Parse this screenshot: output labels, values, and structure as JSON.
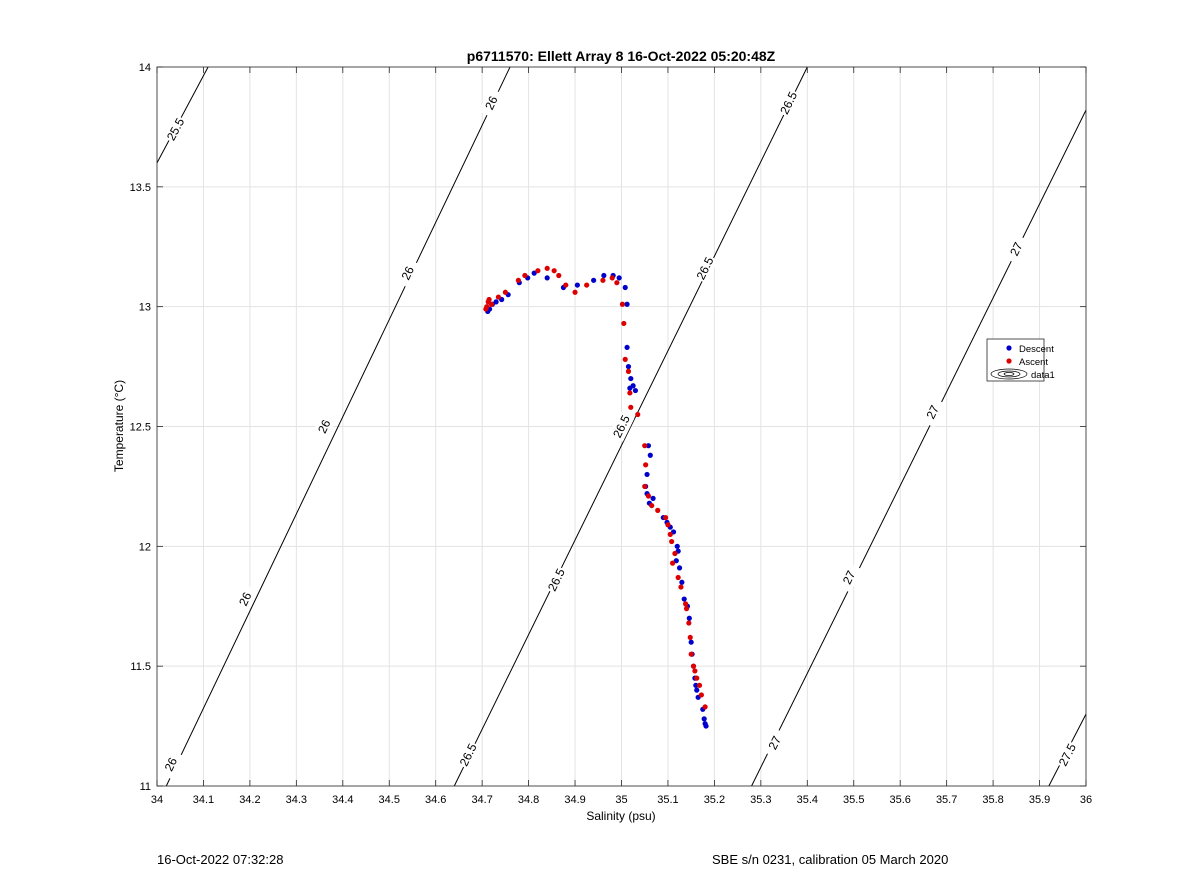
{
  "chart_data": {
    "type": "scatter",
    "title": "p6711570: Ellett Array 8 16-Oct-2022 05:20:48Z",
    "xlabel": "Salinity (psu)",
    "ylabel": "Temperature (°C)",
    "xlim": [
      34,
      36
    ],
    "ylim": [
      11,
      14
    ],
    "xticks": [
      "34",
      "34.1",
      "34.2",
      "34.3",
      "34.4",
      "34.5",
      "34.6",
      "34.7",
      "34.8",
      "34.9",
      "35",
      "35.1",
      "35.2",
      "35.3",
      "35.4",
      "35.5",
      "35.6",
      "35.7",
      "35.8",
      "35.9",
      "36"
    ],
    "yticks": [
      "11",
      "11.5",
      "12",
      "12.5",
      "13",
      "13.5",
      "14"
    ],
    "grid": true,
    "legend_location": "right",
    "legend": [
      "Descent",
      "Ascent",
      "data1"
    ],
    "colors": {
      "descent": "#0000cc",
      "ascent": "#dd0000",
      "contour": "#000000",
      "grid": "#e3e3e3"
    },
    "series": [
      {
        "name": "Descent",
        "x": [
          34.712,
          34.716,
          34.722,
          34.73,
          34.742,
          34.756,
          34.78,
          34.798,
          34.812,
          34.84,
          34.875,
          34.905,
          34.94,
          34.962,
          34.982,
          34.995,
          35.008,
          35.012,
          35.012,
          35.015,
          35.018,
          35.02,
          35.025,
          35.03,
          35.058,
          35.062,
          35.055,
          35.052,
          35.055,
          35.06,
          35.068,
          35.09,
          35.098,
          35.105,
          35.112,
          35.12,
          35.122,
          35.118,
          35.125,
          35.13,
          35.135,
          35.142,
          35.146,
          35.15,
          35.152,
          35.155,
          35.158,
          35.16,
          35.162,
          35.165,
          35.175,
          35.178,
          35.18,
          35.182
        ],
        "y": [
          12.98,
          12.99,
          13.01,
          13.02,
          13.03,
          13.05,
          13.1,
          13.12,
          13.14,
          13.12,
          13.08,
          13.09,
          13.11,
          13.13,
          13.13,
          13.12,
          13.08,
          13.01,
          12.83,
          12.75,
          12.66,
          12.7,
          12.67,
          12.65,
          12.42,
          12.38,
          12.3,
          12.25,
          12.22,
          12.18,
          12.2,
          12.12,
          12.1,
          12.08,
          12.06,
          12.0,
          11.98,
          11.94,
          11.91,
          11.85,
          11.78,
          11.75,
          11.7,
          11.6,
          11.55,
          11.5,
          11.45,
          11.42,
          11.4,
          11.37,
          11.32,
          11.28,
          11.26,
          11.25
        ]
      },
      {
        "name": "Ascent",
        "x": [
          34.708,
          34.71,
          34.713,
          34.715,
          34.72,
          34.735,
          34.75,
          34.778,
          34.792,
          34.82,
          34.84,
          34.855,
          34.865,
          34.88,
          34.9,
          34.925,
          34.96,
          34.98,
          34.99,
          35.002,
          35.005,
          35.008,
          35.015,
          35.018,
          35.02,
          35.035,
          35.05,
          35.052,
          35.05,
          35.058,
          35.065,
          35.078,
          35.095,
          35.1,
          35.105,
          35.108,
          35.115,
          35.11,
          35.122,
          35.128,
          35.138,
          35.14,
          35.145,
          35.148,
          35.15,
          35.155,
          35.158,
          35.162,
          35.168,
          35.172,
          35.18
        ],
        "y": [
          12.99,
          13.0,
          13.02,
          13.03,
          13.01,
          13.04,
          13.06,
          13.11,
          13.13,
          13.15,
          13.16,
          13.15,
          13.13,
          13.09,
          13.06,
          13.09,
          13.11,
          13.12,
          13.1,
          13.01,
          12.93,
          12.78,
          12.73,
          12.64,
          12.58,
          12.55,
          12.42,
          12.34,
          12.25,
          12.21,
          12.17,
          12.15,
          12.12,
          12.09,
          12.05,
          12.02,
          11.97,
          11.93,
          11.87,
          11.83,
          11.76,
          11.74,
          11.68,
          11.62,
          11.55,
          11.5,
          11.48,
          11.45,
          11.42,
          11.38,
          11.33
        ]
      }
    ],
    "isopycnals": [
      {
        "label": "25.5",
        "x": [
          34.0,
          34.11
        ],
        "y": [
          13.6,
          14.0
        ],
        "label_at": [
          34.04,
          13.74
        ]
      },
      {
        "label": "26",
        "x": [
          34.02,
          34.76
        ],
        "y": [
          11.0,
          14.0
        ],
        "label_at": [
          [
            34.03,
            11.09
          ],
          [
            34.19,
            11.78
          ],
          [
            34.36,
            12.5
          ],
          [
            34.54,
            13.14
          ],
          [
            34.72,
            13.85
          ]
        ]
      },
      {
        "label": "26.5",
        "x": [
          34.64,
          35.4
        ],
        "y": [
          11.0,
          14.0
        ],
        "label_at": [
          [
            34.67,
            11.13
          ],
          [
            34.86,
            11.86
          ],
          [
            35.0,
            12.5
          ],
          [
            35.18,
            13.16
          ],
          [
            35.36,
            13.85
          ]
        ]
      },
      {
        "label": "27",
        "x": [
          35.28,
          36.0
        ],
        "y": [
          11.0,
          13.82
        ],
        "label_at": [
          [
            35.33,
            11.18
          ],
          [
            35.49,
            11.87
          ],
          [
            35.67,
            12.56
          ],
          [
            35.85,
            13.24
          ]
        ]
      },
      {
        "label": "27.5",
        "x": [
          35.92,
          36.0
        ],
        "y": [
          11.0,
          11.3
        ],
        "label_at": [
          35.96,
          11.13
        ]
      }
    ]
  },
  "footer": {
    "timestamp": "16-Oct-2022 07:32:28",
    "instrument": "SBE s/n 0231, calibration 05 March 2020"
  }
}
